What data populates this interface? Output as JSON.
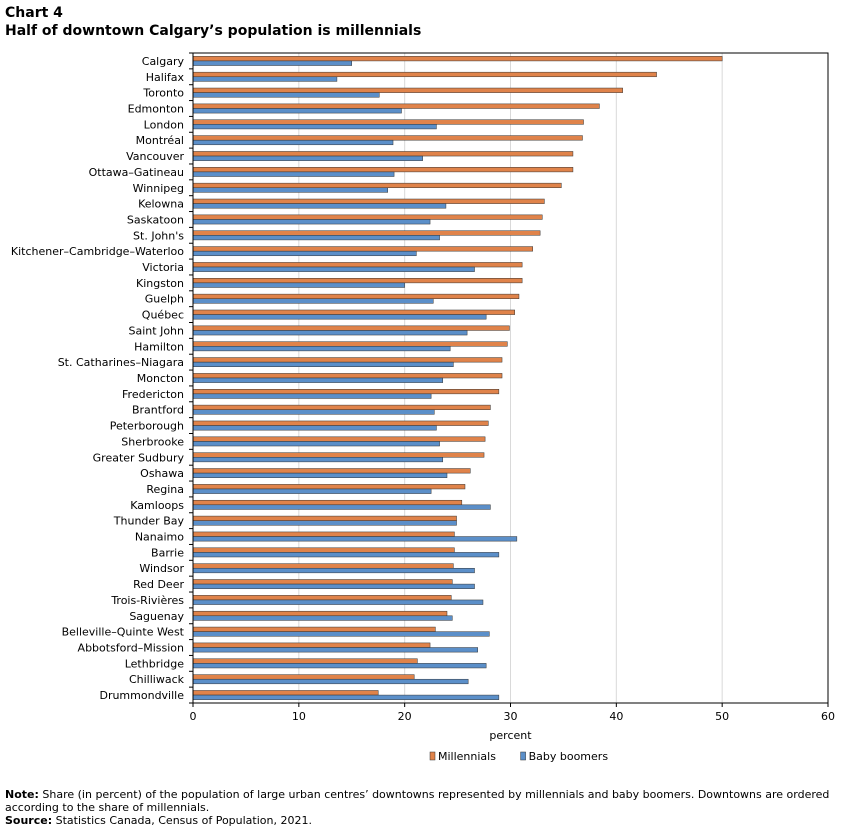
{
  "header": {
    "label": "Chart 4",
    "title": "Half of downtown Calgary’s population is millennials"
  },
  "chart_data": {
    "type": "bar",
    "orientation": "horizontal",
    "categories": [
      "Calgary",
      "Halifax",
      "Toronto",
      "Edmonton",
      "London",
      "Montréal",
      "Vancouver",
      "Ottawa–Gatineau",
      "Winnipeg",
      "Kelowna",
      "Saskatoon",
      "St. John's",
      "Kitchener–Cambridge–Waterloo",
      "Victoria",
      "Kingston",
      "Guelph",
      "Québec",
      "Saint John",
      "Hamilton",
      "St. Catharines–Niagara",
      "Moncton",
      "Fredericton",
      "Brantford",
      "Peterborough",
      "Sherbrooke",
      "Greater Sudbury",
      "Oshawa",
      "Regina",
      "Kamloops",
      "Thunder Bay",
      "Nanaimo",
      "Barrie",
      "Windsor",
      "Red Deer",
      "Trois-Rivières",
      "Saguenay",
      "Belleville–Quinte West",
      "Abbotsford–Mission",
      "Lethbridge",
      "Chilliwack",
      "Drummondville"
    ],
    "series": [
      {
        "name": "Millennials",
        "color": "#e0834a",
        "values": [
          50.0,
          43.8,
          40.6,
          38.4,
          36.9,
          36.8,
          35.9,
          35.9,
          34.8,
          33.2,
          33.0,
          32.8,
          32.1,
          31.1,
          31.1,
          30.8,
          30.4,
          29.9,
          29.7,
          29.2,
          29.2,
          28.9,
          28.1,
          27.9,
          27.6,
          27.5,
          26.2,
          25.7,
          25.4,
          24.9,
          24.7,
          24.7,
          24.6,
          24.5,
          24.4,
          24.0,
          22.9,
          22.4,
          21.2,
          20.9,
          17.5
        ]
      },
      {
        "name": "Baby boomers",
        "color": "#5b8fc9",
        "values": [
          15.0,
          13.6,
          17.6,
          19.7,
          23.0,
          18.9,
          21.7,
          19.0,
          18.4,
          23.9,
          22.4,
          23.3,
          21.1,
          26.6,
          20.0,
          22.7,
          27.7,
          25.9,
          24.3,
          24.6,
          23.6,
          22.5,
          22.8,
          23.0,
          23.3,
          23.6,
          24.0,
          22.5,
          28.1,
          24.9,
          30.6,
          28.9,
          26.6,
          26.6,
          27.4,
          24.5,
          28.0,
          26.9,
          27.7,
          26.0,
          28.9
        ]
      }
    ],
    "xlabel": "percent",
    "ylabel": "",
    "xlim": [
      0,
      60
    ],
    "xticks": [
      0,
      10,
      20,
      30,
      40,
      50,
      60
    ],
    "grid": true,
    "legend": "bottom"
  },
  "notes": {
    "note_label": "Note:",
    "note_text": " Share (in percent) of the population of large urban centres’ downtowns represented by millennials and baby boomers. Downtowns are ordered according to the share of millennials.",
    "source_label": "Source:",
    "source_text": " Statistics Canada, Census of Population, 2021."
  }
}
